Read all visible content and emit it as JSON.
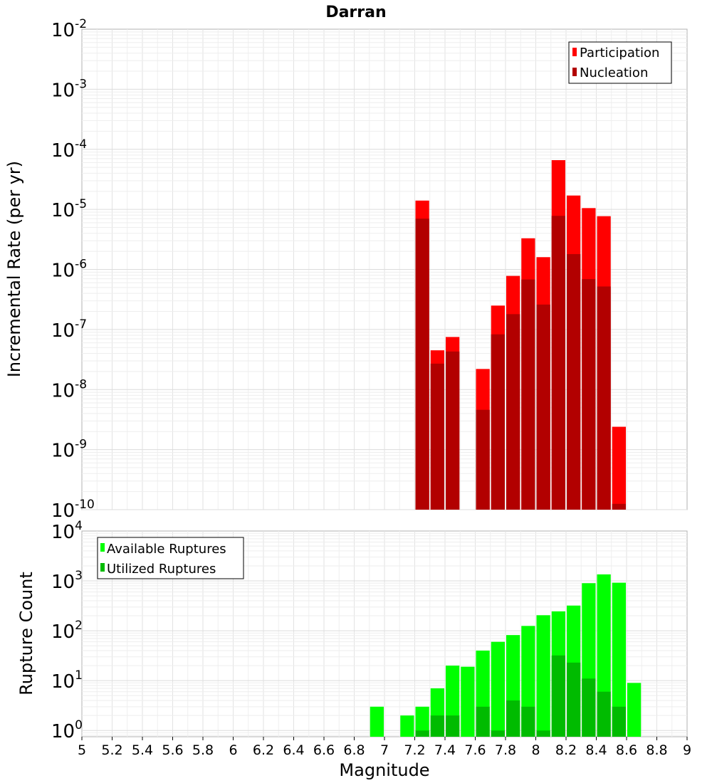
{
  "chart_data": [
    {
      "type": "bar",
      "title": "Darran",
      "xlabel": "",
      "ylabel": "Incremental Rate (per yr)",
      "xlim": [
        5,
        9
      ],
      "ylim": [
        1e-10,
        0.01
      ],
      "yscale": "log",
      "grid": true,
      "legend_position": "top-right",
      "bar_width": 0.1,
      "y_ticks": [
        {
          "base": "10",
          "exp": "-10",
          "value": 1e-10
        },
        {
          "base": "10",
          "exp": "-9",
          "value": 1e-09
        },
        {
          "base": "10",
          "exp": "-8",
          "value": 1e-08
        },
        {
          "base": "10",
          "exp": "-7",
          "value": 1e-07
        },
        {
          "base": "10",
          "exp": "-6",
          "value": 1e-06
        },
        {
          "base": "10",
          "exp": "-5",
          "value": 1e-05
        },
        {
          "base": "10",
          "exp": "-4",
          "value": 0.0001
        },
        {
          "base": "10",
          "exp": "-3",
          "value": 0.001
        },
        {
          "base": "10",
          "exp": "-2",
          "value": 0.01
        }
      ],
      "x": [
        7.25,
        7.35,
        7.45,
        7.65,
        7.75,
        7.85,
        7.95,
        8.05,
        8.15,
        8.25,
        8.35,
        8.45,
        8.55
      ],
      "series": [
        {
          "name": "Participation",
          "color": "#ff0000",
          "values": [
            1.4e-05,
            4.5e-08,
            7.5e-08,
            2.2e-08,
            2.5e-07,
            7.8e-07,
            3.3e-06,
            1.6e-06,
            6.6e-05,
            1.7e-05,
            1.05e-05,
            7.7e-06,
            2.4e-09
          ]
        },
        {
          "name": "Nucleation",
          "color": "#b20000",
          "values": [
            7e-06,
            2.7e-08,
            4.3e-08,
            4.6e-09,
            8.3e-08,
            1.8e-07,
            6.8e-07,
            2.6e-07,
            7.8e-06,
            1.8e-06,
            6.9e-07,
            5.2e-07,
            1.25e-10
          ]
        }
      ]
    },
    {
      "type": "bar",
      "title": "",
      "xlabel": "Magnitude",
      "ylabel": "Rupture Count",
      "xlim": [
        5,
        9
      ],
      "ylim": [
        0.75,
        10000
      ],
      "yscale": "log",
      "grid": true,
      "legend_position": "top-left",
      "bar_width": 0.1,
      "x_ticks": [
        "5",
        "5.2",
        "5.4",
        "5.6",
        "5.8",
        "6",
        "6.2",
        "6.4",
        "6.6",
        "6.8",
        "7",
        "7.2",
        "7.4",
        "7.6",
        "7.8",
        "8",
        "8.2",
        "8.4",
        "8.6",
        "8.8",
        "9"
      ],
      "y_ticks": [
        {
          "base": "10",
          "exp": "0",
          "value": 1
        },
        {
          "base": "10",
          "exp": "1",
          "value": 10
        },
        {
          "base": "10",
          "exp": "2",
          "value": 100
        },
        {
          "base": "10",
          "exp": "3",
          "value": 1000
        },
        {
          "base": "10",
          "exp": "4",
          "value": 10000
        }
      ],
      "x": [
        6.95,
        7.15,
        7.25,
        7.35,
        7.45,
        7.55,
        7.65,
        7.75,
        7.85,
        7.95,
        8.05,
        8.15,
        8.25,
        8.35,
        8.45,
        8.55,
        8.65
      ],
      "series": [
        {
          "name": "Available Ruptures",
          "color": "#00ff00",
          "values": [
            3,
            2,
            3,
            7,
            20,
            19,
            40,
            60,
            82,
            125,
            205,
            245,
            320,
            900,
            1350,
            920,
            9
          ]
        },
        {
          "name": "Utilized Ruptures",
          "color": "#00bb00",
          "values": [
            0,
            0,
            1,
            2,
            2,
            0,
            3,
            1,
            4,
            3,
            1,
            32,
            23,
            11,
            6,
            3,
            0
          ]
        }
      ]
    }
  ]
}
